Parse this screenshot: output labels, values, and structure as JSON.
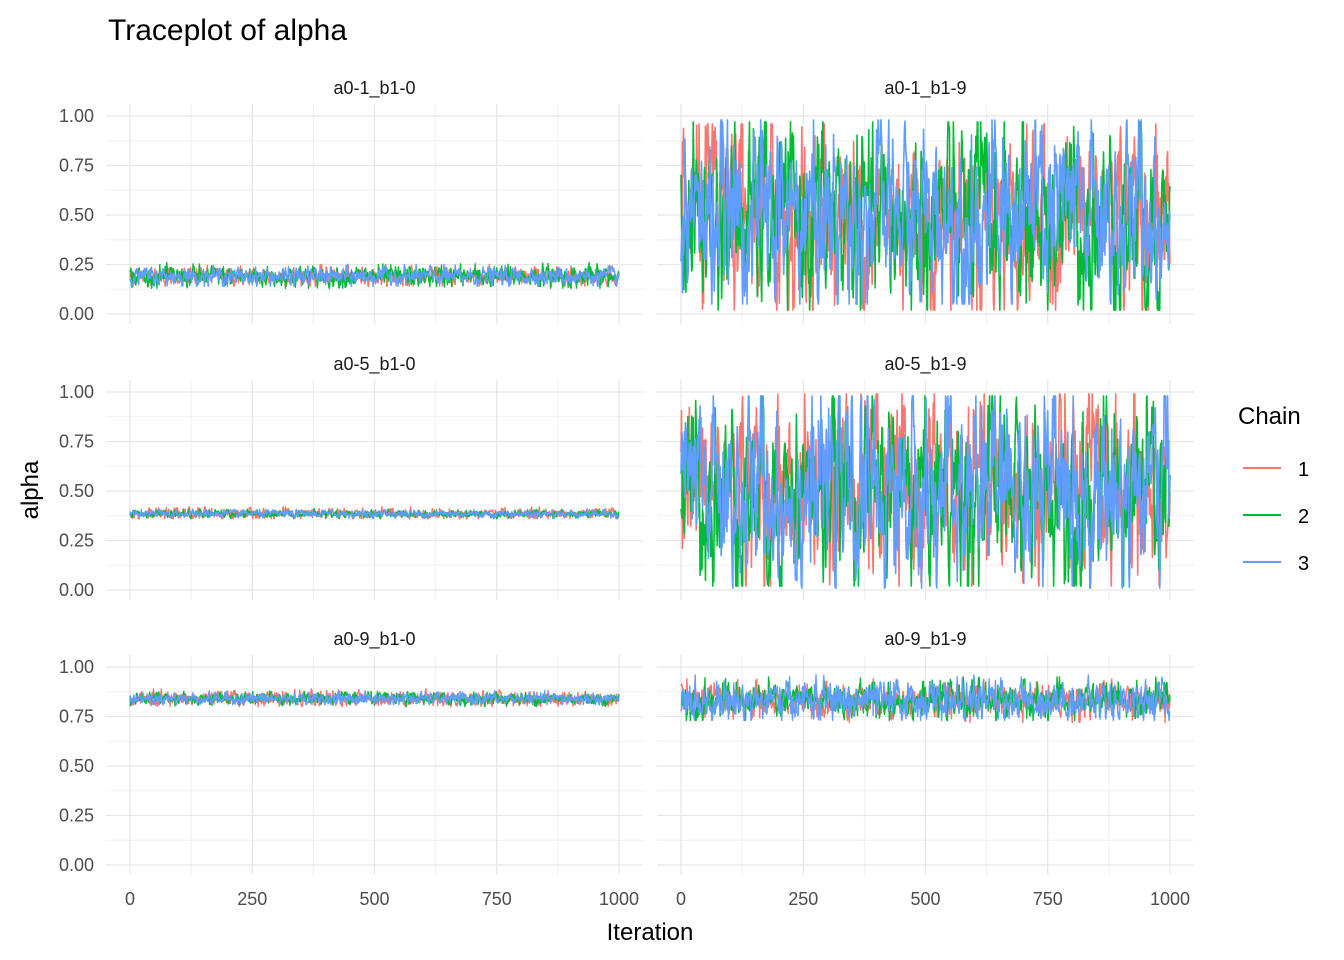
{
  "chart_data": {
    "type": "line",
    "title": "Traceplot of alpha",
    "xlabel": "Iteration",
    "ylabel": "alpha",
    "xlim": [
      0,
      1000
    ],
    "ylim": [
      0,
      1
    ],
    "x_ticks": [
      0,
      250,
      500,
      750,
      1000
    ],
    "x_tick_labels": [
      "0",
      "250",
      "500",
      "750",
      "1000"
    ],
    "y_ticks": [
      0,
      0.25,
      0.5,
      0.75,
      1.0
    ],
    "y_tick_labels": [
      "0.00",
      "0.25",
      "0.50",
      "0.75",
      "1.00"
    ],
    "grid": true,
    "legend": {
      "title": "Chain",
      "position": "right",
      "entries": [
        {
          "label": "1",
          "color": "#F8766D"
        },
        {
          "label": "2",
          "color": "#00BA38"
        },
        {
          "label": "3",
          "color": "#619CFF"
        }
      ]
    },
    "panels": [
      {
        "label": "a0-1_b1-0",
        "row": 0,
        "col": 0,
        "series": [
          {
            "chain": "1",
            "mean": 0.19,
            "min": 0.14,
            "max": 0.25
          },
          {
            "chain": "2",
            "mean": 0.19,
            "min": 0.13,
            "max": 0.26
          },
          {
            "chain": "3",
            "mean": 0.19,
            "min": 0.14,
            "max": 0.25
          }
        ]
      },
      {
        "label": "a0-1_b1-9",
        "row": 0,
        "col": 1,
        "series": [
          {
            "chain": "1",
            "mean": 0.49,
            "min": 0.02,
            "max": 0.96
          },
          {
            "chain": "2",
            "mean": 0.48,
            "min": 0.02,
            "max": 0.97
          },
          {
            "chain": "3",
            "mean": 0.5,
            "min": 0.05,
            "max": 0.98
          }
        ]
      },
      {
        "label": "a0-5_b1-0",
        "row": 1,
        "col": 0,
        "series": [
          {
            "chain": "1",
            "mean": 0.385,
            "min": 0.36,
            "max": 0.42
          },
          {
            "chain": "2",
            "mean": 0.385,
            "min": 0.36,
            "max": 0.41
          },
          {
            "chain": "3",
            "mean": 0.385,
            "min": 0.36,
            "max": 0.41
          }
        ]
      },
      {
        "label": "a0-5_b1-9",
        "row": 1,
        "col": 1,
        "series": [
          {
            "chain": "1",
            "mean": 0.5,
            "min": 0.02,
            "max": 0.99
          },
          {
            "chain": "2",
            "mean": 0.5,
            "min": 0.02,
            "max": 0.98
          },
          {
            "chain": "3",
            "mean": 0.5,
            "min": 0.01,
            "max": 0.98
          }
        ]
      },
      {
        "label": "a0-9_b1-0",
        "row": 2,
        "col": 0,
        "series": [
          {
            "chain": "1",
            "mean": 0.84,
            "min": 0.8,
            "max": 0.89
          },
          {
            "chain": "2",
            "mean": 0.84,
            "min": 0.8,
            "max": 0.88
          },
          {
            "chain": "3",
            "mean": 0.84,
            "min": 0.81,
            "max": 0.88
          }
        ]
      },
      {
        "label": "a0-9_b1-9",
        "row": 2,
        "col": 1,
        "series": [
          {
            "chain": "1",
            "mean": 0.83,
            "min": 0.72,
            "max": 0.94
          },
          {
            "chain": "2",
            "mean": 0.83,
            "min": 0.73,
            "max": 0.95
          },
          {
            "chain": "3",
            "mean": 0.83,
            "min": 0.73,
            "max": 0.96
          }
        ]
      }
    ]
  }
}
